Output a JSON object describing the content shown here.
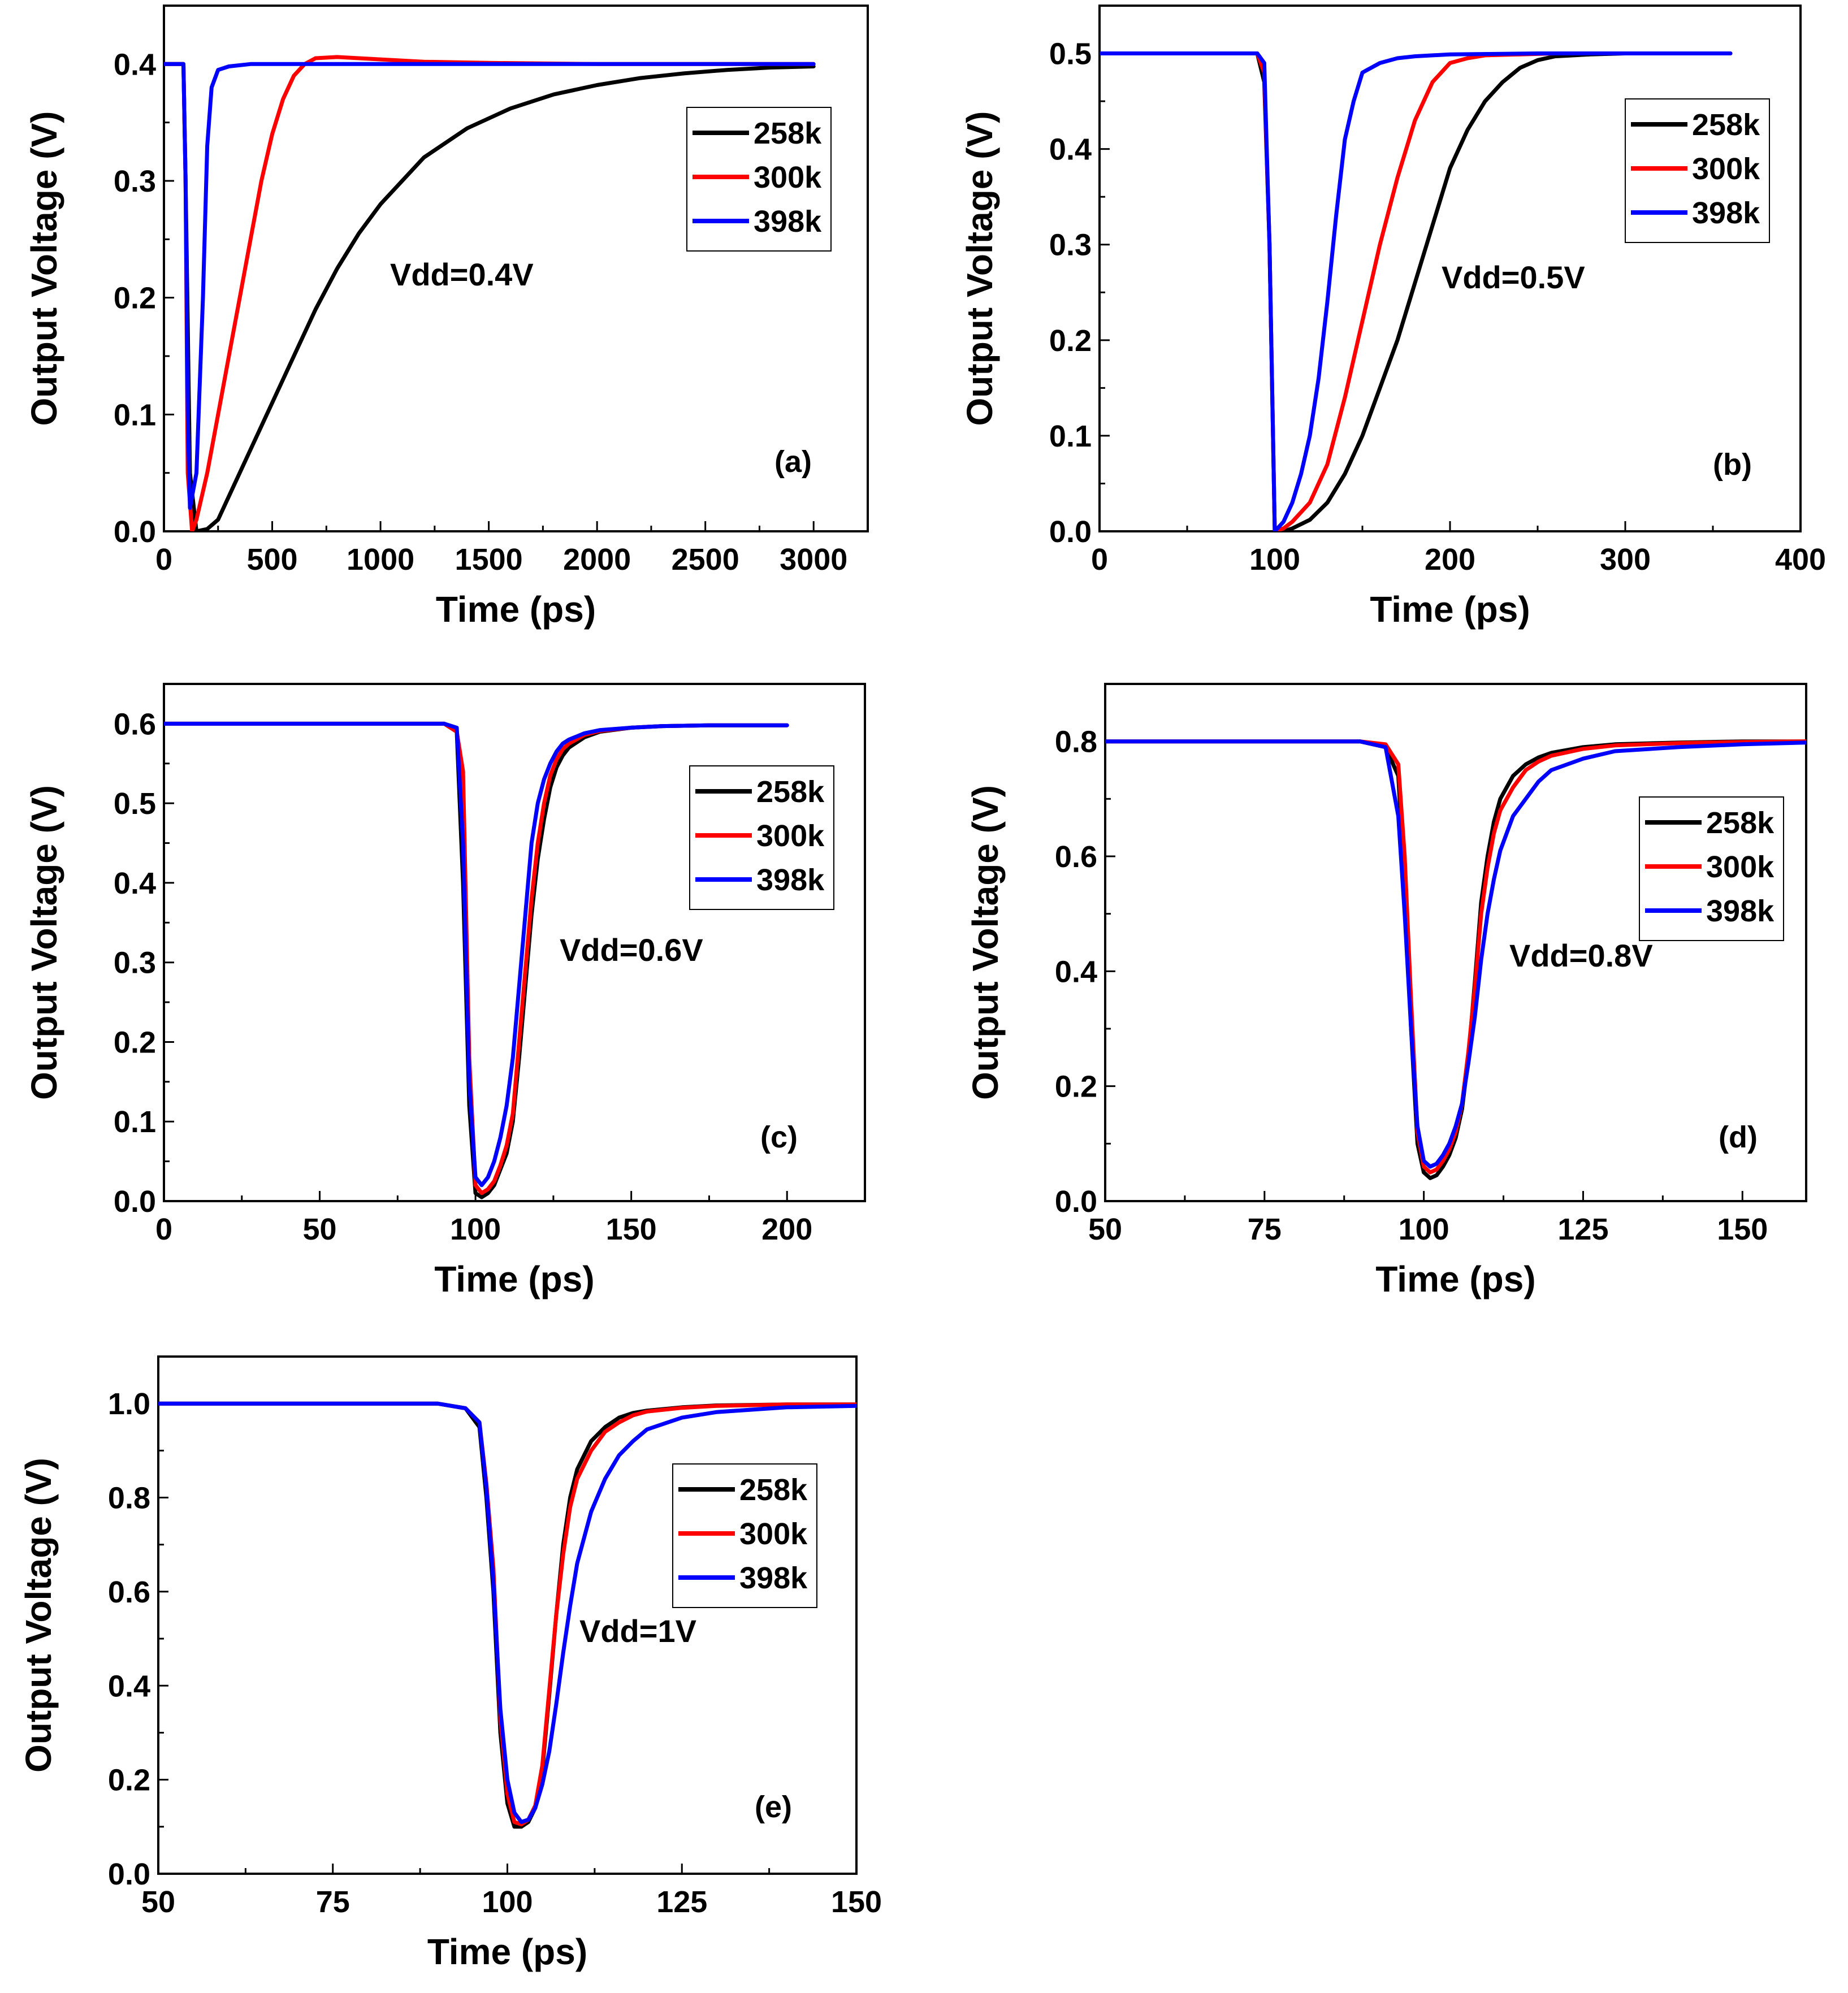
{
  "chart_data": [
    {
      "type": "line",
      "panel_label": "(a)",
      "annotation": "Vdd=0.4V",
      "xlabel": "Time (ps)",
      "ylabel": "Output Voltage (V)",
      "xlim": [
        0,
        3250
      ],
      "ylim": [
        0,
        0.45
      ],
      "xticks": [
        0,
        500,
        1000,
        1500,
        2000,
        2500,
        3000
      ],
      "xtick_labels": [
        "0",
        "500",
        "1000",
        "1500",
        "2000",
        "2500",
        "3000"
      ],
      "yticks": [
        0,
        0.1,
        0.2,
        0.3,
        0.4
      ],
      "ytick_labels": [
        "0.0",
        "0.1",
        "0.2",
        "0.3",
        "0.4"
      ],
      "legend_position": "top-right",
      "series": [
        {
          "name": "258k",
          "color": "#000000",
          "x": [
            0,
            90,
            100,
            120,
            150,
            200,
            250,
            300,
            400,
            500,
            600,
            700,
            800,
            900,
            1000,
            1200,
            1400,
            1600,
            1800,
            2000,
            2200,
            2400,
            2600,
            2800,
            3000
          ],
          "y": [
            0.4,
            0.4,
            0.3,
            0.05,
            0.0,
            0.002,
            0.01,
            0.03,
            0.07,
            0.11,
            0.15,
            0.19,
            0.225,
            0.255,
            0.28,
            0.32,
            0.345,
            0.362,
            0.374,
            0.382,
            0.388,
            0.392,
            0.395,
            0.397,
            0.398
          ]
        },
        {
          "name": "300k",
          "color": "#ff0000",
          "x": [
            0,
            90,
            100,
            110,
            130,
            150,
            200,
            250,
            300,
            350,
            400,
            450,
            500,
            550,
            600,
            650,
            700,
            800,
            900,
            1000,
            1200,
            1500,
            2000,
            2500,
            3000
          ],
          "y": [
            0.4,
            0.4,
            0.3,
            0.05,
            0.0,
            0.01,
            0.05,
            0.1,
            0.15,
            0.2,
            0.25,
            0.3,
            0.34,
            0.37,
            0.39,
            0.4,
            0.405,
            0.406,
            0.405,
            0.404,
            0.402,
            0.401,
            0.4,
            0.4,
            0.4
          ]
        },
        {
          "name": "398k",
          "color": "#0000ff",
          "x": [
            0,
            90,
            100,
            110,
            120,
            150,
            180,
            200,
            220,
            250,
            300,
            400,
            600,
            1000,
            2000,
            3000
          ],
          "y": [
            0.4,
            0.4,
            0.3,
            0.1,
            0.02,
            0.05,
            0.2,
            0.33,
            0.38,
            0.395,
            0.398,
            0.4,
            0.4,
            0.4,
            0.4,
            0.4
          ]
        }
      ]
    },
    {
      "type": "line",
      "panel_label": "(b)",
      "annotation": "Vdd=0.5V",
      "xlabel": "Time (ps)",
      "ylabel": "Output Voltage (V)",
      "xlim": [
        0,
        400
      ],
      "ylim": [
        0,
        0.55
      ],
      "xticks": [
        0,
        100,
        200,
        300,
        400
      ],
      "xtick_labels": [
        "0",
        "100",
        "200",
        "300",
        "400"
      ],
      "yticks": [
        0,
        0.1,
        0.2,
        0.3,
        0.4,
        0.5
      ],
      "ytick_labels": [
        "0.0",
        "0.1",
        "0.2",
        "0.3",
        "0.4",
        "0.5"
      ],
      "legend_position": "top-right",
      "series": [
        {
          "name": "258k",
          "color": "#000000",
          "x": [
            0,
            90,
            94,
            97,
            100,
            105,
            110,
            120,
            130,
            140,
            150,
            160,
            170,
            180,
            190,
            200,
            210,
            220,
            230,
            240,
            250,
            260,
            280,
            300,
            360
          ],
          "y": [
            0.5,
            0.5,
            0.47,
            0.3,
            0.0,
            0.0,
            0.003,
            0.012,
            0.03,
            0.06,
            0.1,
            0.15,
            0.2,
            0.26,
            0.32,
            0.38,
            0.42,
            0.45,
            0.47,
            0.485,
            0.493,
            0.497,
            0.499,
            0.5,
            0.5
          ]
        },
        {
          "name": "300k",
          "color": "#ff0000",
          "x": [
            0,
            90,
            94,
            97,
            100,
            105,
            110,
            120,
            130,
            140,
            150,
            160,
            170,
            180,
            190,
            200,
            210,
            220,
            240,
            260,
            300,
            360
          ],
          "y": [
            0.5,
            0.5,
            0.48,
            0.3,
            0.0,
            0.003,
            0.01,
            0.03,
            0.07,
            0.14,
            0.22,
            0.3,
            0.37,
            0.43,
            0.47,
            0.49,
            0.495,
            0.498,
            0.499,
            0.5,
            0.5,
            0.5
          ]
        },
        {
          "name": "398k",
          "color": "#0000ff",
          "x": [
            0,
            90,
            94,
            97,
            100,
            105,
            110,
            115,
            120,
            125,
            130,
            135,
            140,
            145,
            150,
            160,
            170,
            180,
            200,
            250,
            300,
            360
          ],
          "y": [
            0.5,
            0.5,
            0.49,
            0.3,
            0.0,
            0.01,
            0.03,
            0.06,
            0.1,
            0.16,
            0.24,
            0.33,
            0.41,
            0.45,
            0.48,
            0.49,
            0.495,
            0.497,
            0.499,
            0.5,
            0.5,
            0.5
          ]
        }
      ]
    },
    {
      "type": "line",
      "panel_label": "(c)",
      "annotation": "Vdd=0.6V",
      "xlabel": "Time (ps)",
      "ylabel": "Output Voltage (V)",
      "xlim": [
        0,
        225
      ],
      "ylim": [
        0,
        0.65
      ],
      "xticks": [
        0,
        50,
        100,
        150,
        200
      ],
      "xtick_labels": [
        "0",
        "50",
        "100",
        "150",
        "200"
      ],
      "yticks": [
        0,
        0.1,
        0.2,
        0.3,
        0.4,
        0.5,
        0.6
      ],
      "ytick_labels": [
        "0.0",
        "0.1",
        "0.2",
        "0.3",
        "0.4",
        "0.5",
        "0.6"
      ],
      "legend_position": "top-right",
      "series": [
        {
          "name": "258k",
          "color": "#000000",
          "x": [
            0,
            90,
            94,
            96,
            98,
            100,
            102,
            104,
            106,
            108,
            110,
            112,
            114,
            116,
            118,
            120,
            122,
            124,
            126,
            128,
            130,
            135,
            140,
            150,
            160,
            175,
            200
          ],
          "y": [
            0.6,
            0.6,
            0.59,
            0.4,
            0.12,
            0.01,
            0.005,
            0.01,
            0.02,
            0.04,
            0.06,
            0.1,
            0.18,
            0.27,
            0.36,
            0.43,
            0.48,
            0.52,
            0.545,
            0.56,
            0.57,
            0.583,
            0.59,
            0.595,
            0.597,
            0.598,
            0.598
          ]
        },
        {
          "name": "300k",
          "color": "#ff0000",
          "x": [
            0,
            90,
            94,
            96,
            98,
            100,
            102,
            104,
            106,
            108,
            110,
            112,
            114,
            116,
            118,
            120,
            122,
            124,
            126,
            128,
            130,
            135,
            140,
            150,
            160,
            175,
            200
          ],
          "y": [
            0.6,
            0.6,
            0.59,
            0.54,
            0.18,
            0.02,
            0.01,
            0.015,
            0.025,
            0.045,
            0.07,
            0.11,
            0.2,
            0.29,
            0.38,
            0.45,
            0.5,
            0.535,
            0.555,
            0.568,
            0.575,
            0.586,
            0.591,
            0.595,
            0.597,
            0.598,
            0.598
          ]
        },
        {
          "name": "398k",
          "color": "#0000ff",
          "x": [
            0,
            90,
            94,
            96,
            98,
            100,
            102,
            104,
            106,
            108,
            110,
            112,
            114,
            116,
            118,
            120,
            122,
            124,
            126,
            128,
            130,
            135,
            140,
            150,
            160,
            175,
            200
          ],
          "y": [
            0.6,
            0.6,
            0.595,
            0.45,
            0.15,
            0.03,
            0.02,
            0.03,
            0.05,
            0.08,
            0.12,
            0.18,
            0.27,
            0.36,
            0.45,
            0.5,
            0.53,
            0.55,
            0.565,
            0.575,
            0.58,
            0.588,
            0.592,
            0.595,
            0.597,
            0.598,
            0.598
          ]
        }
      ]
    },
    {
      "type": "line",
      "panel_label": "(d)",
      "annotation": "Vdd=0.8V",
      "xlabel": "Time (ps)",
      "ylabel": "Output Voltage (V)",
      "xlim": [
        50,
        160
      ],
      "ylim": [
        0,
        0.9
      ],
      "xticks": [
        50,
        75,
        100,
        125,
        150
      ],
      "xtick_labels": [
        "50",
        "75",
        "100",
        "125",
        "150"
      ],
      "yticks": [
        0,
        0.2,
        0.4,
        0.6,
        0.8
      ],
      "ytick_labels": [
        "0.0",
        "0.2",
        "0.4",
        "0.6",
        "0.8"
      ],
      "legend_position": "top-right",
      "series": [
        {
          "name": "258k",
          "color": "#000000",
          "x": [
            50,
            90,
            94,
            96,
            97,
            98,
            99,
            100,
            101,
            102,
            103,
            104,
            105,
            106,
            107,
            108,
            109,
            110,
            111,
            112,
            114,
            116,
            118,
            120,
            125,
            130,
            140,
            150,
            160
          ],
          "y": [
            0.8,
            0.8,
            0.79,
            0.74,
            0.55,
            0.3,
            0.1,
            0.05,
            0.04,
            0.045,
            0.06,
            0.08,
            0.11,
            0.16,
            0.25,
            0.38,
            0.52,
            0.6,
            0.66,
            0.7,
            0.74,
            0.76,
            0.772,
            0.78,
            0.79,
            0.795,
            0.798,
            0.8,
            0.8
          ]
        },
        {
          "name": "300k",
          "color": "#ff0000",
          "x": [
            50,
            90,
            94,
            96,
            97,
            98,
            99,
            100,
            101,
            102,
            103,
            104,
            105,
            106,
            107,
            108,
            109,
            110,
            111,
            112,
            114,
            116,
            118,
            120,
            125,
            130,
            140,
            150,
            160
          ],
          "y": [
            0.8,
            0.8,
            0.795,
            0.76,
            0.6,
            0.35,
            0.12,
            0.06,
            0.05,
            0.055,
            0.07,
            0.09,
            0.12,
            0.17,
            0.26,
            0.37,
            0.5,
            0.58,
            0.64,
            0.68,
            0.72,
            0.75,
            0.765,
            0.775,
            0.787,
            0.793,
            0.797,
            0.799,
            0.8
          ]
        },
        {
          "name": "398k",
          "color": "#0000ff",
          "x": [
            50,
            90,
            94,
            96,
            97,
            98,
            99,
            100,
            101,
            102,
            103,
            104,
            105,
            106,
            107,
            108,
            109,
            110,
            111,
            112,
            114,
            116,
            118,
            120,
            125,
            130,
            140,
            150,
            160
          ],
          "y": [
            0.8,
            0.8,
            0.79,
            0.67,
            0.5,
            0.3,
            0.13,
            0.07,
            0.06,
            0.065,
            0.08,
            0.1,
            0.13,
            0.17,
            0.24,
            0.32,
            0.42,
            0.5,
            0.56,
            0.61,
            0.67,
            0.7,
            0.73,
            0.75,
            0.77,
            0.783,
            0.79,
            0.795,
            0.798
          ]
        }
      ]
    },
    {
      "type": "line",
      "panel_label": "(e)",
      "annotation": "Vdd=1V",
      "xlabel": "Time (ps)",
      "ylabel": "Output Voltage (V)",
      "xlim": [
        50,
        150
      ],
      "ylim": [
        0,
        1.1
      ],
      "xticks": [
        50,
        75,
        100,
        125,
        150
      ],
      "xtick_labels": [
        "50",
        "75",
        "100",
        "125",
        "150"
      ],
      "yticks": [
        0,
        0.2,
        0.4,
        0.6,
        0.8,
        1.0
      ],
      "ytick_labels": [
        "0.0",
        "0.2",
        "0.4",
        "0.6",
        "0.8",
        "1.0"
      ],
      "legend_position": "top-right",
      "series": [
        {
          "name": "258k",
          "color": "#000000",
          "x": [
            50,
            90,
            94,
            96,
            97,
            98,
            99,
            100,
            101,
            102,
            103,
            104,
            105,
            106,
            107,
            108,
            109,
            110,
            112,
            114,
            116,
            118,
            120,
            125,
            130,
            140,
            150
          ],
          "y": [
            1.0,
            1.0,
            0.99,
            0.95,
            0.8,
            0.6,
            0.3,
            0.15,
            0.1,
            0.1,
            0.11,
            0.14,
            0.22,
            0.38,
            0.55,
            0.7,
            0.8,
            0.86,
            0.92,
            0.95,
            0.97,
            0.98,
            0.985,
            0.992,
            0.996,
            0.998,
            0.998
          ]
        },
        {
          "name": "300k",
          "color": "#ff0000",
          "x": [
            50,
            90,
            94,
            96,
            97,
            98,
            99,
            100,
            101,
            102,
            103,
            104,
            105,
            106,
            107,
            108,
            109,
            110,
            112,
            114,
            116,
            118,
            120,
            125,
            130,
            140,
            150
          ],
          "y": [
            1.0,
            1.0,
            0.99,
            0.96,
            0.83,
            0.65,
            0.33,
            0.17,
            0.11,
            0.105,
            0.115,
            0.145,
            0.23,
            0.39,
            0.55,
            0.68,
            0.78,
            0.84,
            0.9,
            0.94,
            0.96,
            0.975,
            0.983,
            0.991,
            0.995,
            0.998,
            0.998
          ]
        },
        {
          "name": "398k",
          "color": "#0000ff",
          "x": [
            50,
            90,
            94,
            96,
            97,
            98,
            99,
            100,
            101,
            102,
            103,
            104,
            105,
            106,
            107,
            108,
            109,
            110,
            112,
            114,
            116,
            118,
            120,
            125,
            130,
            140,
            150
          ],
          "y": [
            1.0,
            1.0,
            0.99,
            0.96,
            0.82,
            0.62,
            0.35,
            0.2,
            0.13,
            0.11,
            0.115,
            0.14,
            0.19,
            0.26,
            0.36,
            0.47,
            0.57,
            0.66,
            0.77,
            0.84,
            0.89,
            0.92,
            0.945,
            0.97,
            0.982,
            0.992,
            0.995
          ]
        }
      ]
    }
  ]
}
